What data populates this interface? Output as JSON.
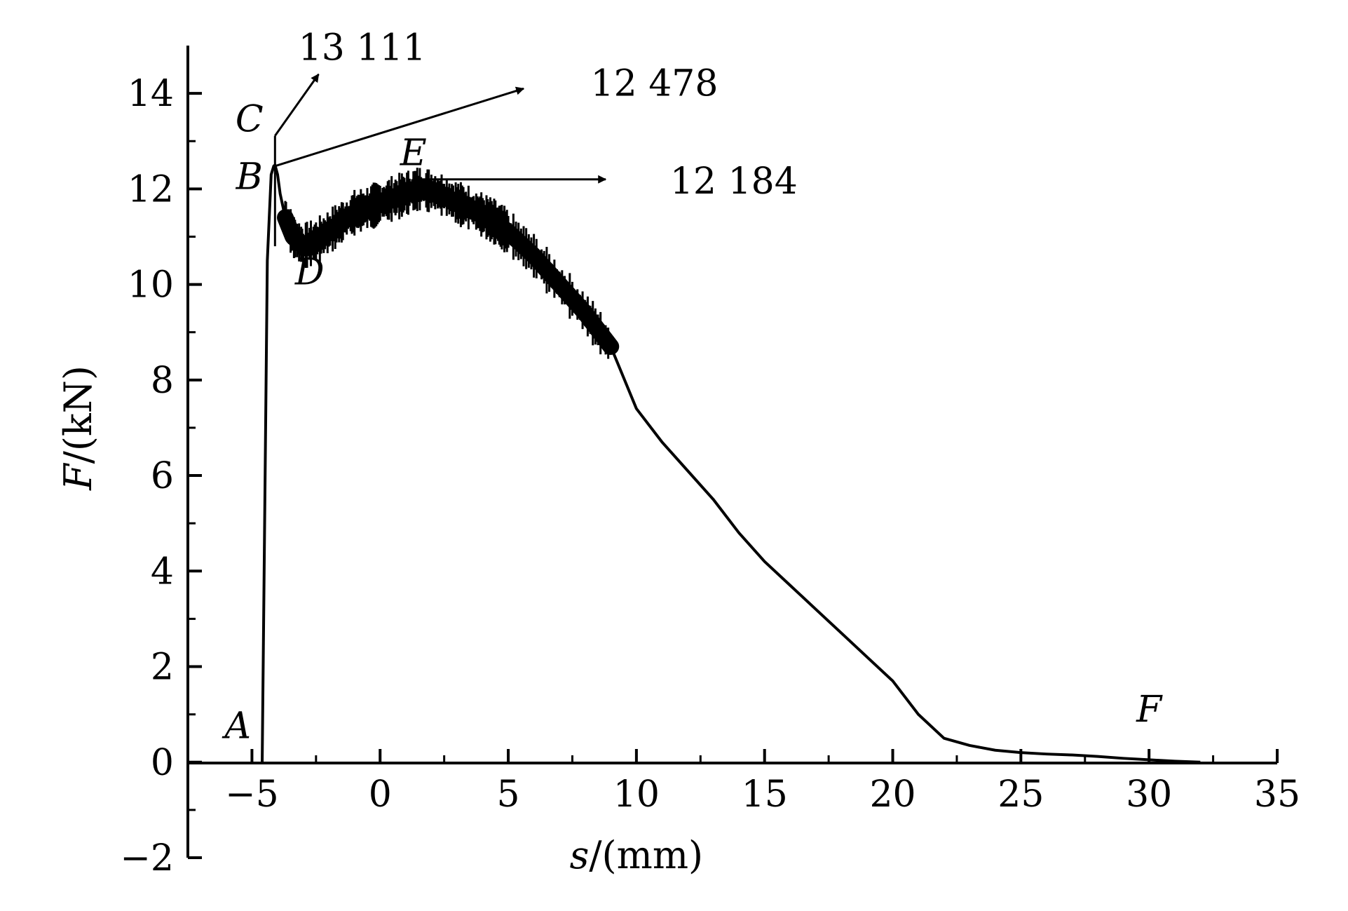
{
  "chart_data": {
    "type": "line",
    "title": "",
    "xlabel": {
      "var": "s",
      "unit": "/(mm)"
    },
    "ylabel": {
      "var": "F",
      "unit": "/(kN)"
    },
    "xlim": [
      -7.5,
      35
    ],
    "ylim": [
      -2,
      15
    ],
    "x_ticks": [
      -5,
      0,
      5,
      10,
      15,
      20,
      25,
      30,
      35
    ],
    "x_tick_labels": [
      "−5",
      "0",
      "5",
      "10",
      "15",
      "20",
      "25",
      "30",
      "35"
    ],
    "y_ticks": [
      -2,
      0,
      2,
      4,
      6,
      8,
      10,
      12,
      14
    ],
    "y_tick_labels": [
      "−2",
      "0",
      "2",
      "4",
      "6",
      "8",
      "10",
      "12",
      "14"
    ],
    "grid": false,
    "series": [
      {
        "x": [
          -4.6,
          -4.4,
          -4.25,
          -4.15,
          -4.1,
          -4.0,
          -3.9,
          -3.7,
          -3.4,
          -3.0,
          -2.5,
          -2.0,
          -1.5,
          -1.0,
          -0.5,
          0.0,
          0.5,
          1.0,
          1.5,
          2.0,
          2.5,
          3.0,
          3.5,
          4.0,
          4.5,
          5.0,
          6.0,
          7.0,
          8.0,
          9.0,
          10.0,
          11.0,
          12.0,
          13.0,
          14.0,
          15.0,
          16.0,
          17.0,
          18.0,
          19.0,
          20.0,
          21.0,
          22.0,
          23.0,
          24.0,
          25.0,
          26.0,
          27.0,
          28.0,
          29.0,
          30.0,
          31.0,
          32.0
        ],
        "y": [
          0.0,
          10.5,
          12.3,
          12.478,
          12.5,
          12.3,
          11.9,
          11.4,
          11.0,
          10.8,
          10.9,
          11.1,
          11.3,
          11.5,
          11.6,
          11.7,
          11.8,
          11.9,
          12.0,
          11.95,
          11.85,
          11.7,
          11.6,
          11.45,
          11.3,
          11.1,
          10.6,
          10.0,
          9.4,
          8.7,
          7.4,
          6.7,
          6.1,
          5.5,
          4.8,
          4.2,
          3.7,
          3.2,
          2.7,
          2.2,
          1.7,
          1.0,
          0.5,
          0.35,
          0.25,
          0.2,
          0.17,
          0.15,
          0.12,
          0.08,
          0.05,
          0.02,
          0.0
        ]
      }
    ],
    "spike": {
      "x": -4.1,
      "y_top": 13.111,
      "y_bottom": 10.8
    },
    "noise_band": {
      "x_start": -3.7,
      "x_end": 9.5,
      "width": 0.35
    },
    "point_labels": [
      {
        "label": "A",
        "x": -5.55,
        "y": 0.5
      },
      {
        "label": "B",
        "x": -5.1,
        "y": 12.0
      },
      {
        "label": "C",
        "x": -5.1,
        "y": 13.2
      },
      {
        "label": "D",
        "x": -2.75,
        "y": 10.0
      },
      {
        "label": "E",
        "x": 1.3,
        "y": 12.5
      },
      {
        "label": "F",
        "x": 30.0,
        "y": 0.85
      }
    ],
    "annotations": [
      {
        "text": "13 111",
        "from": [
          -4.1,
          13.111
        ],
        "to": [
          -2.4,
          14.4
        ],
        "text_pos": [
          -0.7,
          14.7
        ]
      },
      {
        "text": "12 478",
        "from": [
          -4.1,
          12.478
        ],
        "to": [
          5.6,
          14.1
        ],
        "text_pos": [
          10.7,
          13.95
        ]
      },
      {
        "text": "12 184",
        "from": [
          1.5,
          12.2
        ],
        "to": [
          8.8,
          12.2
        ],
        "text_pos": [
          13.8,
          11.9
        ]
      }
    ]
  }
}
